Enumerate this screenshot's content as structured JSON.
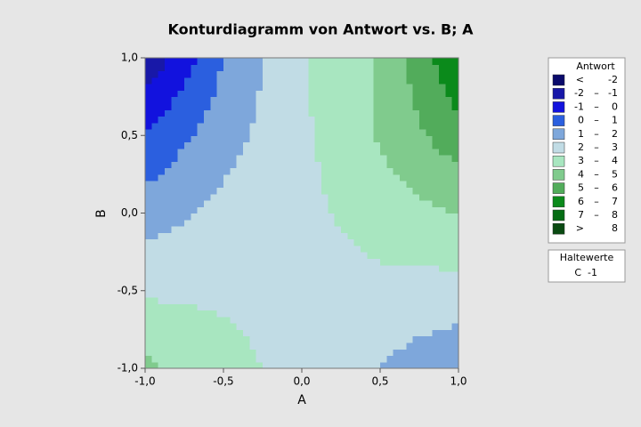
{
  "chart_data": {
    "type": "contour",
    "title": "Konturdiagramm von Antwort vs. B; A",
    "x_label": "A",
    "y_label": "B",
    "x": [
      -1,
      -0.5,
      0,
      0.5,
      1
    ],
    "y": [
      -1,
      -0.5,
      0,
      0.5,
      1
    ],
    "z": [
      [
        4.2,
        3.4,
        2.6,
        1.95,
        1.2
      ],
      [
        2.85,
        2.8,
        2.6,
        2.7,
        2.6
      ],
      [
        1.5,
        2.3,
        2.7,
        3.5,
        4.05
      ],
      [
        0.1,
        1.6,
        2.8,
        4.1,
        5.6
      ],
      [
        -1.8,
        1.0,
        2.95,
        4.1,
        6.9
      ]
    ],
    "xlim": [
      -1,
      1
    ],
    "ylim": [
      -1,
      1
    ],
    "xticks": [
      {
        "value": -1,
        "label": "-1,0"
      },
      {
        "value": -0.5,
        "label": "-0,5"
      },
      {
        "value": 0,
        "label": "0,0"
      },
      {
        "value": 0.5,
        "label": "0,5"
      },
      {
        "value": 1,
        "label": "1,0"
      }
    ],
    "yticks": [
      {
        "value": -1,
        "label": "-1,0"
      },
      {
        "value": -0.5,
        "label": "-0,5"
      },
      {
        "value": 0,
        "label": "0,0"
      },
      {
        "value": 0.5,
        "label": "0,5"
      },
      {
        "value": 1,
        "label": "1,0"
      }
    ],
    "legend_title": "Antwort",
    "breaks": [
      -2,
      -1,
      0,
      1,
      2,
      3,
      4,
      5,
      6,
      7,
      8
    ],
    "levels": [
      {
        "low": "<",
        "high": "-2",
        "color": "#0b0b6b"
      },
      {
        "low": "-2",
        "high": "-1",
        "color": "#1818a8"
      },
      {
        "low": "-1",
        "high": "0",
        "color": "#1212de"
      },
      {
        "low": "0",
        "high": "1",
        "color": "#2b5fdf"
      },
      {
        "low": "1",
        "high": "2",
        "color": "#7ea7db"
      },
      {
        "low": "2",
        "high": "3",
        "color": "#c1dce5"
      },
      {
        "low": "3",
        "high": "4",
        "color": "#a8e6c0"
      },
      {
        "low": "4",
        "high": "5",
        "color": "#80cb8d"
      },
      {
        "low": "5",
        "high": "6",
        "color": "#52ac5b"
      },
      {
        "low": "6",
        "high": "7",
        "color": "#0b8a1b"
      },
      {
        "low": "7",
        "high": "8",
        "color": "#066d14"
      },
      {
        "low": ">",
        "high": "8",
        "color": "#0a4a12"
      }
    ],
    "hold_title": "Haltewerte",
    "hold": [
      {
        "name": "C",
        "value": -1
      }
    ]
  }
}
